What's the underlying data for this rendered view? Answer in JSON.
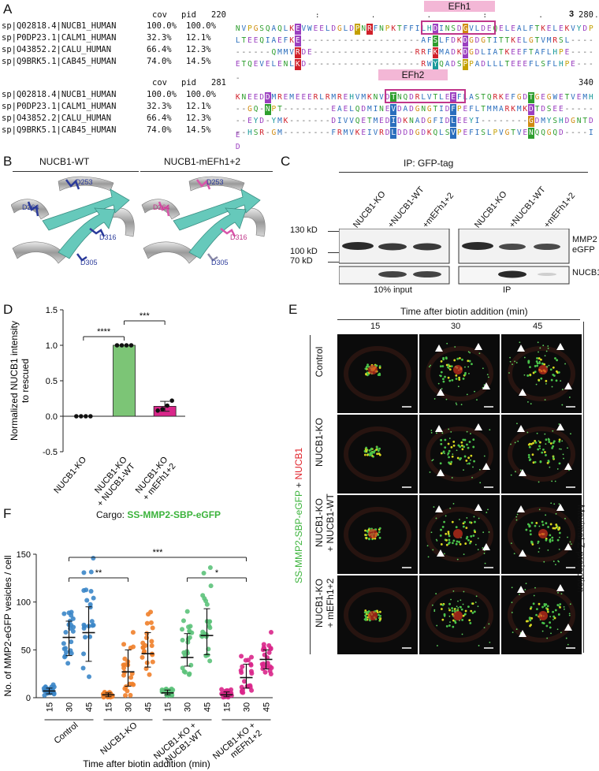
{
  "panels": {
    "A": "A",
    "B": "B",
    "C": "C",
    "D": "D",
    "E": "E",
    "F": "F"
  },
  "panelA": {
    "block1": {
      "header_cov": "cov",
      "header_pid": "pid",
      "start": "220",
      "end": "280",
      "marker": "3",
      "domain_label": "EFh1",
      "rows": [
        {
          "id": "sp|Q02818.4|NUCB1_HUMAN",
          "cov": "100.0%",
          "pid": "100.0%",
          "seq": "NVPGSQAQLKEVWEELDGLDPNRFNPKTFFILHDINSDGVLDEQELEALFTKELEKVYDP"
        },
        {
          "id": "sp|P0DP23.1|CALM1_HUMAN",
          "cov": "32.3%",
          "pid": "12.1%",
          "seq": "LTEEQIAEFKE--------------------AFSLFDKDGDGTITTKELGTVMRSL----"
        },
        {
          "id": "sp|O43852.2|CALU_HUMAN",
          "cov": "66.4%",
          "pid": "12.3%",
          "seq": "------QMMVRDE-----------------RRFKMADKDGDLIATKEEFTAFLHPE----"
        },
        {
          "id": "sp|Q9BRK5.1|CAB45_HUMAN",
          "cov": "74.0%",
          "pid": "14.5%",
          "seq": "ETQEVELENLKD-------------------RWYQADSPPADLLLTEEEFLSFLHPE----"
        }
      ]
    },
    "block2": {
      "header_cov": "cov",
      "header_pid": "pid",
      "start": "281",
      "end": "340",
      "domain_label": "EFh2",
      "rows": [
        {
          "id": "sp|Q02818.4|NUCB1_HUMAN",
          "cov": "100.0%",
          "pid": "100.0%",
          "seq": "KNEEDDMREMEEERLRMREHVMKNVDTNQDRLVTLEEFLASTQRKEFGDTGEGWETVEMH"
        },
        {
          "id": "sp|P0DP23.1|CALM1_HUMAN",
          "cov": "32.3%",
          "pid": "12.1%",
          "seq": "--GQ-NPT--------EAELQDMINEVDADGNGTIDFPEFLTMMARKMKDTDSEE-----"
        },
        {
          "id": "sp|O43852.2|CALU_HUMAN",
          "cov": "66.4%",
          "pid": "12.3%",
          "seq": "--EYD-YMK-------DIVVQETMEDIDKNADGFIDLEEYI--------GDMYSHDGNTDE"
        },
        {
          "id": "sp|Q9BRK5.1|CAB45_HUMAN",
          "cov": "74.0%",
          "pid": "14.5%",
          "seq": "--HSR-GM--------FRMVKEIVRDLDDDGDKQLSVPEFISLPVGTVENQQGQD----ID"
        }
      ]
    }
  },
  "panelB": {
    "titles": [
      "NUCB1-WT",
      "NUCB1-mEFh1+2"
    ],
    "residues_left": [
      "D253",
      "D264",
      "D316",
      "D305"
    ],
    "residues_right": [
      "D253",
      "D264",
      "D316",
      "D305"
    ]
  },
  "panelC": {
    "title": "IP: GFP-tag",
    "lanes": [
      "NUCB1-KO",
      "+NUCB1-WT",
      "+mEFh1+2",
      "NUCB1-KO",
      "+NUCB1-WT",
      "+mEFh1+2"
    ],
    "markers": [
      "130 kD",
      "100 kD",
      "70 kD"
    ],
    "band_labels": [
      "MMP2",
      "eGFP",
      "NUCB1"
    ],
    "bottom_labels": [
      "10% input",
      "IP"
    ]
  },
  "panelD": {
    "chart_data": {
      "type": "bar",
      "ylabel": "Normalized NUCB1 intensity to rescued",
      "ylim": [
        -0.5,
        1.5
      ],
      "yticks": [
        "1.5",
        "1.0",
        "0.5",
        "0.0",
        "-0.5"
      ],
      "categories": [
        "NUCB1-KO",
        "NUCB1-KO + NUCB1-WT",
        "NUCB1-KO + mEFh1+2"
      ],
      "values": [
        0.0,
        1.0,
        0.14
      ],
      "errors": [
        0.0,
        0.0,
        0.07
      ],
      "points": [
        [
          0.0,
          0.0,
          0.0,
          0.0
        ],
        [
          1.0,
          1.0,
          1.0,
          1.0
        ],
        [
          0.08,
          0.1,
          0.15,
          0.22
        ]
      ],
      "significance": [
        {
          "from": 0,
          "to": 1,
          "label": "****"
        },
        {
          "from": 1,
          "to": 2,
          "label": "***"
        }
      ],
      "colors": [
        "#ffffff",
        "#7cc576",
        "#d9268a"
      ]
    }
  },
  "panelE": {
    "title": "Time after biotin addition (min)",
    "times": [
      "15",
      "30",
      "45"
    ],
    "rows": [
      "Control",
      "NUCB1-KO",
      "NUCB1-KO + NUCB1-WT",
      "NUCB1-KO + mEFh1+2"
    ],
    "side_label": "Maximal Z-projection",
    "left_label_green": "SS-MMP2-SBP-eGFP",
    "left_label_plus": " + ",
    "left_label_red": "NUCB1"
  },
  "panelF": {
    "cargo_label": "Cargo:",
    "cargo_value": "SS-MMP2-SBP-eGFP",
    "chart_data": {
      "type": "scatter",
      "ylabel": "No. of MMP2-eGFP vesicles / cell",
      "xlabel": "Time after biotin addition (min)",
      "ylim": [
        0,
        150
      ],
      "yticks": [
        "0",
        "50",
        "100",
        "150"
      ],
      "groups": [
        "Control",
        "NUCB1-KO",
        "NUCB1-KO + NUCB1-WT",
        "NUCB1-KO + mEFh1+2"
      ],
      "times": [
        "15",
        "30",
        "45"
      ],
      "colors": [
        "#3b86c8",
        "#f07f2a",
        "#5cc27a",
        "#d9268a"
      ],
      "medians": [
        [
          7,
          63,
          68
        ],
        [
          3,
          27,
          46
        ],
        [
          5,
          42,
          65
        ],
        [
          3,
          21,
          40
        ]
      ],
      "q1": [
        [
          4,
          44,
          38
        ],
        [
          1,
          12,
          32
        ],
        [
          3,
          33,
          45
        ],
        [
          1,
          10,
          30
        ]
      ],
      "q3": [
        [
          10,
          80,
          95
        ],
        [
          5,
          50,
          68
        ],
        [
          8,
          67,
          93
        ],
        [
          6,
          35,
          50
        ]
      ],
      "significance": [
        {
          "from": "Control-30",
          "to": "NUCB1-KO-30",
          "label": "**"
        },
        {
          "from": "NUCB1-KO + NUCB1-WT-30",
          "to": "NUCB1-KO + mEFh1+2-30",
          "label": "*"
        },
        {
          "from": "Control-30",
          "to": "NUCB1-KO + mEFh1+2-30",
          "label": "***"
        }
      ]
    }
  }
}
